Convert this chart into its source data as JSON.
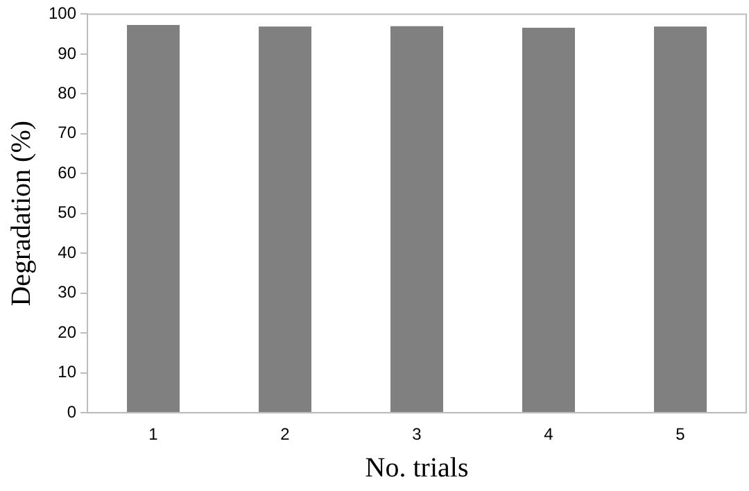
{
  "chart_data": {
    "type": "bar",
    "xlabel": "No. trials",
    "ylabel": "Degradation (%)",
    "categories": [
      "1",
      "2",
      "3",
      "4",
      "5"
    ],
    "values": [
      97.3,
      96.9,
      97.0,
      96.6,
      96.9
    ],
    "color": "#808080",
    "ylim": [
      0,
      100
    ],
    "yticks": [
      0,
      10,
      20,
      30,
      40,
      50,
      60,
      70,
      80,
      90,
      100
    ],
    "grid": false,
    "legend": false
  }
}
